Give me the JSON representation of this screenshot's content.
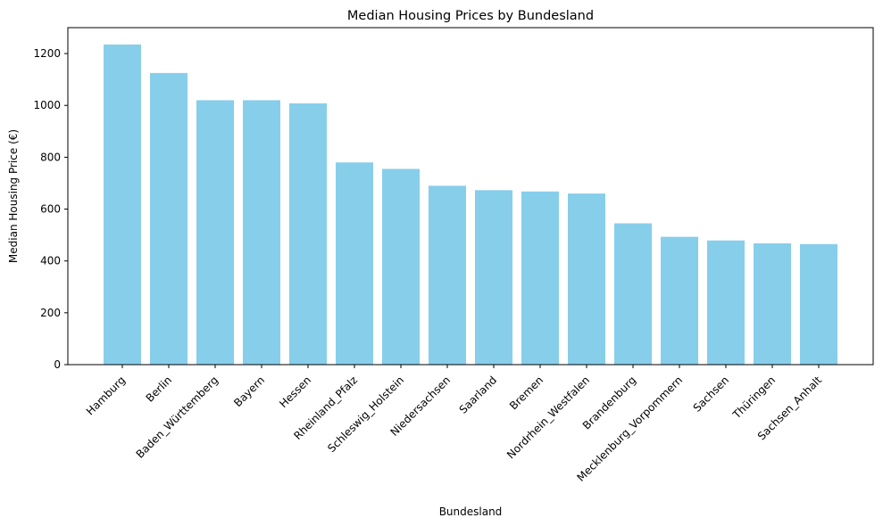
{
  "chart_data": {
    "type": "bar",
    "title": "Median Housing Prices by Bundesland",
    "xlabel": "Bundesland",
    "ylabel": "Median Housing Price (€)",
    "ylim": [
      0,
      1300
    ],
    "yticks": [
      0,
      200,
      400,
      600,
      800,
      1000,
      1200
    ],
    "grid": false,
    "bar_color": "#87CEEB",
    "categories": [
      "Hamburg",
      "Berlin",
      "Baden_Württemberg",
      "Bayern",
      "Hessen",
      "Rheinland_Pfalz",
      "Schleswig_Holstein",
      "Niedersachsen",
      "Saarland",
      "Bremen",
      "Nordrhein_Westfalen",
      "Brandenburg",
      "Mecklenburg_Vorpommern",
      "Sachsen",
      "Thüringen",
      "Sachsen_Anhalt"
    ],
    "values": [
      1235,
      1125,
      1020,
      1020,
      1008,
      780,
      755,
      690,
      673,
      668,
      660,
      545,
      493,
      479,
      468,
      465
    ]
  }
}
